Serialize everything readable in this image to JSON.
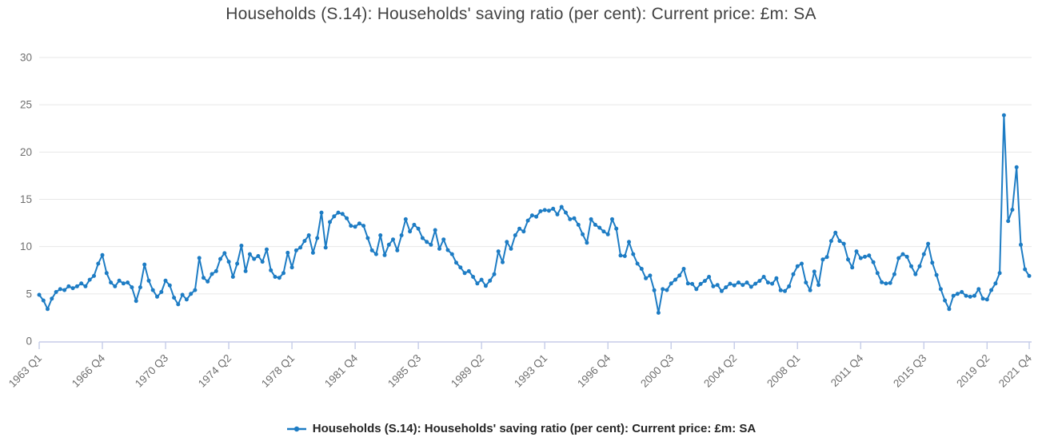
{
  "title": "Households (S.14): Households' saving ratio (per cent): Current price: £m: SA",
  "legend": {
    "label": "Households (S.14): Households' saving ratio (per cent): Current price: £m: SA"
  },
  "colors": {
    "line": "#1d7cc4",
    "gridline": "#e7e7e7",
    "axis_line": "#c5cce8",
    "tick_label": "#6f6f6f",
    "title_text": "#414141",
    "legend_text": "#262626"
  },
  "chart_data": {
    "type": "line",
    "title": "Households (S.14): Households' saving ratio (per cent): Current price: £m: SA",
    "series": [
      {
        "name": "Households (S.14): Households' saving ratio (per cent): Current price: £m: SA",
        "values": [
          4.9,
          4.3,
          3.4,
          4.5,
          5.2,
          5.5,
          5.4,
          5.8,
          5.6,
          5.8,
          6.1,
          5.8,
          6.5,
          6.9,
          8.2,
          9.1,
          7.2,
          6.2,
          5.8,
          6.4,
          6.1,
          6.2,
          5.7,
          4.25,
          5.7,
          8.1,
          6.4,
          5.4,
          4.7,
          5.2,
          6.4,
          5.9,
          4.6,
          3.9,
          4.9,
          4.4,
          5.0,
          5.4,
          8.8,
          6.7,
          6.3,
          7.1,
          7.4,
          8.7,
          9.3,
          8.4,
          6.8,
          8.2,
          10.1,
          7.4,
          9.2,
          8.7,
          9.0,
          8.4,
          9.7,
          7.5,
          6.8,
          6.7,
          7.2,
          9.35,
          7.8,
          9.6,
          9.9,
          10.6,
          11.2,
          9.35,
          10.9,
          13.6,
          9.9,
          12.6,
          13.2,
          13.6,
          13.45,
          13.0,
          12.2,
          12.1,
          12.45,
          12.2,
          10.9,
          9.6,
          9.2,
          11.2,
          9.1,
          10.2,
          10.76,
          9.6,
          11.2,
          12.9,
          11.6,
          12.3,
          11.9,
          10.9,
          10.5,
          10.2,
          11.75,
          9.77,
          10.76,
          9.63,
          9.2,
          8.3,
          7.8,
          7.2,
          7.4,
          6.8,
          6.1,
          6.5,
          5.85,
          6.4,
          7.08,
          9.5,
          8.35,
          10.5,
          9.77,
          11.2,
          11.9,
          11.6,
          12.75,
          13.3,
          13.17,
          13.74,
          13.87,
          13.8,
          14.0,
          13.4,
          14.2,
          13.6,
          12.9,
          13.0,
          12.3,
          11.3,
          10.4,
          12.9,
          12.3,
          12.0,
          11.6,
          11.3,
          12.9,
          11.9,
          9.06,
          9.0,
          10.5,
          9.2,
          8.2,
          7.65,
          6.65,
          6.94,
          5.38,
          3.0,
          5.5,
          5.4,
          6.1,
          6.5,
          6.94,
          7.65,
          6.1,
          6.05,
          5.5,
          6.05,
          6.37,
          6.8,
          5.8,
          5.94,
          5.3,
          5.7,
          6.08,
          5.9,
          6.2,
          5.94,
          6.2,
          5.75,
          6.08,
          6.37,
          6.8,
          6.2,
          6.08,
          6.65,
          5.38,
          5.3,
          5.8,
          7.08,
          7.93,
          8.2,
          6.2,
          5.38,
          7.36,
          5.94,
          8.64,
          8.9,
          10.6,
          11.47,
          10.6,
          10.3,
          8.64,
          7.79,
          9.5,
          8.78,
          8.92,
          9.06,
          8.35,
          7.2,
          6.23,
          6.09,
          6.15,
          7.08,
          8.78,
          9.2,
          8.92,
          7.93,
          7.08,
          7.93,
          9.2,
          10.3,
          8.3,
          7.0,
          5.5,
          4.3,
          3.4,
          4.8,
          5.0,
          5.2,
          4.8,
          4.7,
          4.8,
          5.5,
          4.5,
          4.4,
          5.4,
          6.1,
          7.2,
          23.9,
          12.7,
          13.9,
          18.4,
          10.2,
          7.6,
          6.9
        ]
      }
    ],
    "x_axis": {
      "start": "1963 Q1",
      "end": "2021 Q4",
      "frequency": "quarterly",
      "tick_indices": [
        0,
        15,
        30,
        45,
        60,
        75,
        90,
        105,
        120,
        135,
        150,
        165,
        180,
        195,
        210,
        225,
        235
      ],
      "tick_labels": [
        "1963 Q1",
        "1966 Q4",
        "1970 Q3",
        "1974 Q2",
        "1978 Q1",
        "1981 Q4",
        "1985 Q3",
        "1989 Q2",
        "1993 Q1",
        "1996 Q4",
        "2000 Q3",
        "2004 Q2",
        "2008 Q1",
        "2011 Q4",
        "2015 Q3",
        "2019 Q2",
        "2021 Q4"
      ]
    },
    "y_axis": {
      "ticks": [
        0,
        5,
        10,
        15,
        20,
        25,
        30
      ],
      "ylim": [
        0,
        30
      ],
      "label": ""
    },
    "grid": "horizontal-only",
    "legend_position": "bottom-center",
    "markers": true
  }
}
